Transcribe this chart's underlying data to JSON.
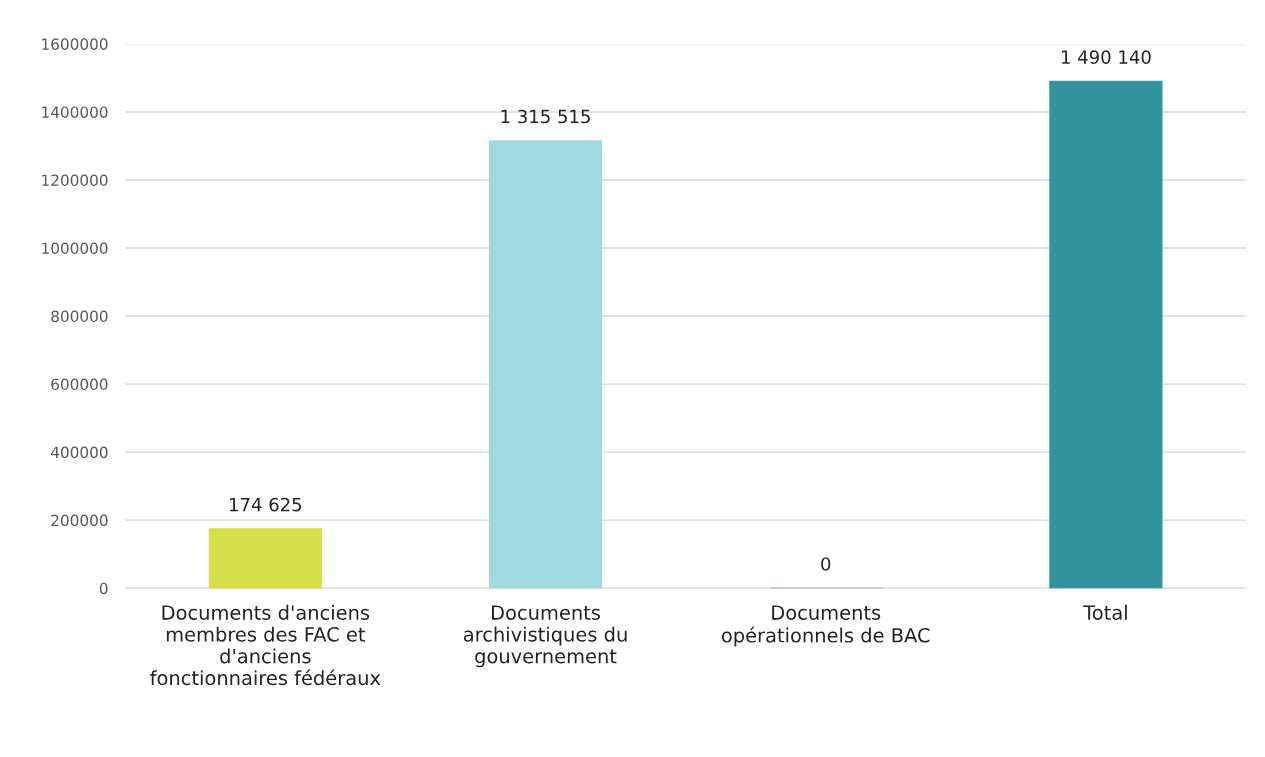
{
  "chart_data": {
    "type": "bar",
    "categories": [
      "Documents d'anciens\nmembres des FAC et\nd'anciens\nfonctionnaires fédéraux",
      "Documents\narchivistiques du\ngouvernement",
      "Documents\nopérationnels de BAC",
      "Total"
    ],
    "values": [
      174625,
      1315515,
      0,
      1490140
    ],
    "value_labels": [
      "174 625",
      "1 315 515",
      "0",
      "1 490 140"
    ],
    "colors": [
      "#d4df4a",
      "#a0dae0",
      "#4f81bd",
      "#31939b"
    ],
    "ylim": [
      0,
      1600000
    ],
    "yticks": [
      0,
      200000,
      400000,
      600000,
      800000,
      1000000,
      1200000,
      1400000,
      1600000
    ],
    "grid": "y"
  }
}
